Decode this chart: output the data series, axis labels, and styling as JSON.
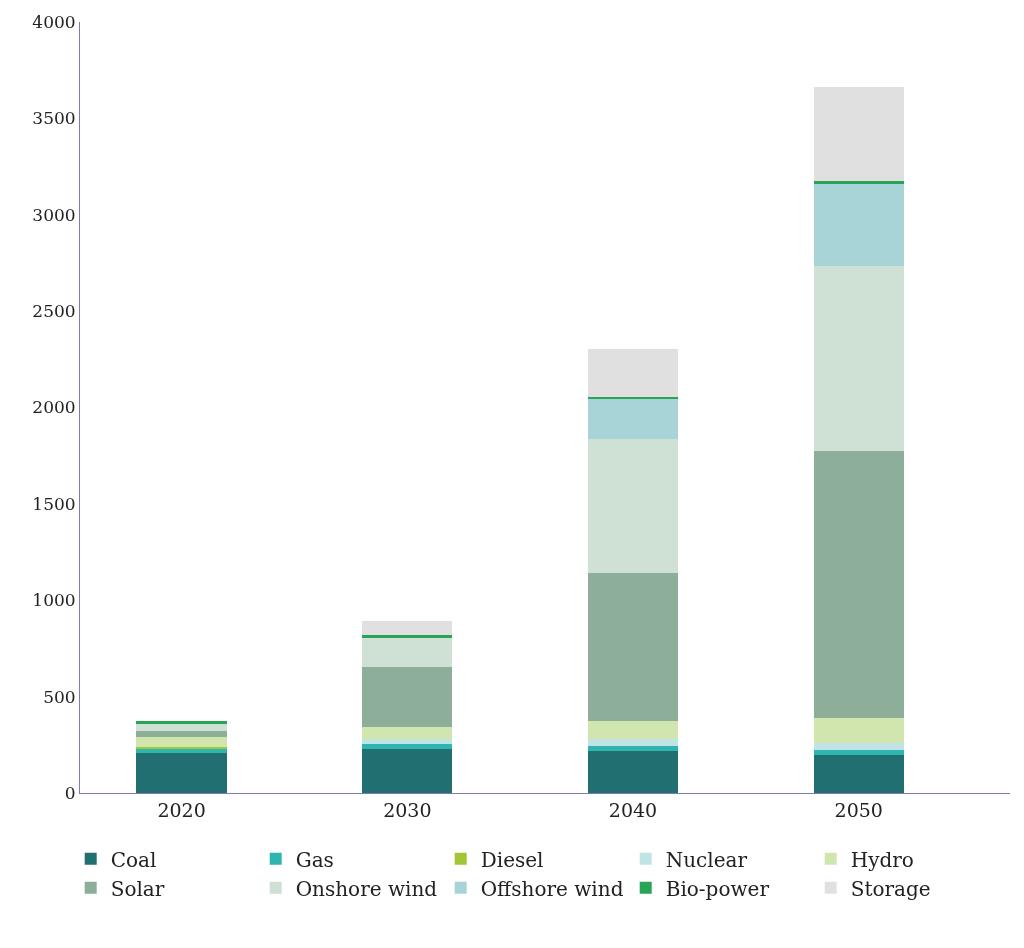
{
  "chart_data": {
    "type": "bar",
    "stacked": true,
    "categories": [
      "2020",
      "2030",
      "2040",
      "2050"
    ],
    "series": [
      {
        "name": "Coal",
        "color": "#226f72",
        "values": [
          205,
          230,
          220,
          195
        ]
      },
      {
        "name": "Gas",
        "color": "#2fb5b0",
        "values": [
          25,
          25,
          25,
          30
        ]
      },
      {
        "name": "Diesel",
        "color": "#a3c637",
        "values": [
          8,
          0,
          0,
          0
        ]
      },
      {
        "name": "Nuclear",
        "color": "#c2e3e6",
        "values": [
          0,
          25,
          35,
          35
        ]
      },
      {
        "name": "Hydro",
        "color": "#d1e6ae",
        "values": [
          55,
          65,
          95,
          130
        ]
      },
      {
        "name": "Solar",
        "color": "#8dae99",
        "values": [
          30,
          310,
          765,
          1385
        ]
      },
      {
        "name": "Onshore wind",
        "color": "#cfe0d4",
        "values": [
          40,
          150,
          695,
          960
        ]
      },
      {
        "name": "Offshore wind",
        "color": "#a8d4d8",
        "values": [
          0,
          0,
          210,
          425
        ]
      },
      {
        "name": "Bio-power",
        "color": "#27a456",
        "values": [
          10,
          15,
          10,
          15
        ]
      },
      {
        "name": "Storage",
        "color": "#e0e0e0",
        "values": [
          0,
          70,
          250,
          490
        ]
      }
    ],
    "ylim": [
      0,
      4000
    ],
    "yticks": [
      0,
      500,
      1000,
      1500,
      2000,
      2500,
      3000,
      3500,
      4000
    ],
    "legend": "bottom"
  }
}
